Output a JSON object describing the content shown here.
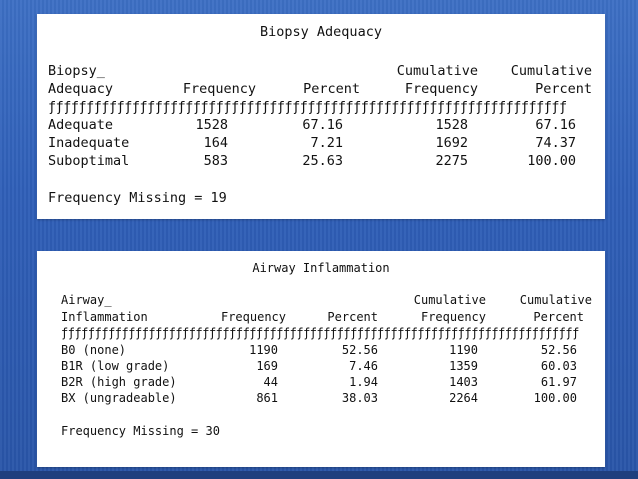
{
  "tables": [
    {
      "title": "Biopsy Adequacy",
      "header_row1": [
        "Biopsy_",
        "",
        "",
        "Cumulative",
        "Cumulative"
      ],
      "header_row2": [
        "Adequacy",
        "Frequency",
        "Percent",
        "Frequency",
        "Percent"
      ],
      "rule": "ƒƒƒƒƒƒƒƒƒƒƒƒƒƒƒƒƒƒƒƒƒƒƒƒƒƒƒƒƒƒƒƒƒƒƒƒƒƒƒƒƒƒƒƒƒƒƒƒƒƒƒƒƒƒƒƒƒƒƒƒƒƒƒƒƒƒƒƒ",
      "rows": [
        [
          "Adequate",
          "1528",
          "67.16",
          "1528",
          "67.16"
        ],
        [
          "Inadequate",
          "164",
          "7.21",
          "1692",
          "74.37"
        ],
        [
          "Suboptimal",
          "583",
          "25.63",
          "2275",
          "100.00"
        ]
      ],
      "missing": "Frequency Missing = 19"
    },
    {
      "title": "Airway Inflammation",
      "header_row1": [
        "Airway_",
        "",
        "",
        "Cumulative",
        "Cumulative"
      ],
      "header_row2": [
        "Inflammation",
        "Frequency",
        "Percent",
        "Frequency",
        "Percent"
      ],
      "rule": "ƒƒƒƒƒƒƒƒƒƒƒƒƒƒƒƒƒƒƒƒƒƒƒƒƒƒƒƒƒƒƒƒƒƒƒƒƒƒƒƒƒƒƒƒƒƒƒƒƒƒƒƒƒƒƒƒƒƒƒƒƒƒƒƒƒƒƒƒƒƒƒƒƒƒƒƒƒ",
      "rows": [
        [
          "B0 (none)",
          "1190",
          "52.56",
          "1190",
          "52.56"
        ],
        [
          "B1R (low grade)",
          "169",
          "7.46",
          "1359",
          "60.03"
        ],
        [
          "B2R (high grade)",
          "44",
          "1.94",
          "1403",
          "61.97"
        ],
        [
          "BX (ungradeable)",
          "861",
          "38.03",
          "2264",
          "100.00"
        ]
      ],
      "missing": "Frequency Missing = 30"
    }
  ]
}
